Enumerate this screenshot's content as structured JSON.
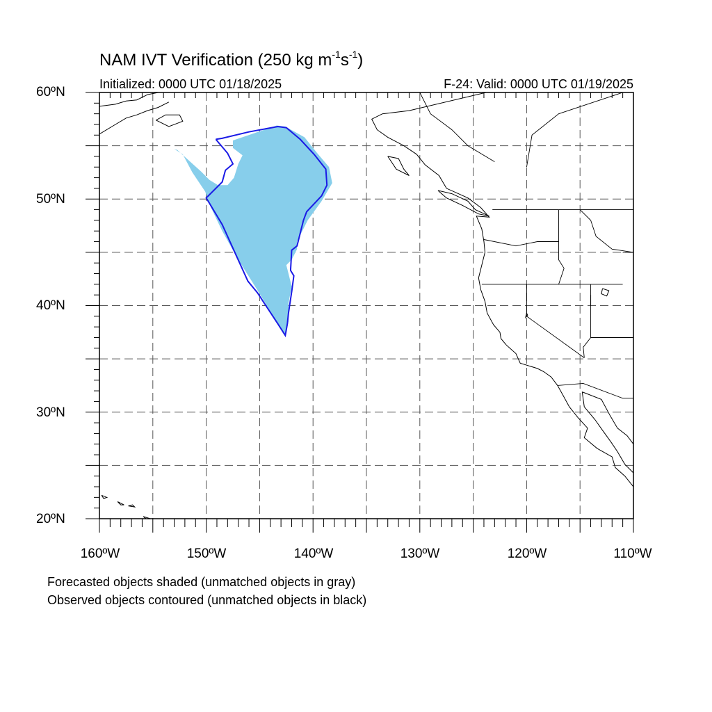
{
  "title": {
    "prefix": "NAM IVT Verification (250 kg m",
    "exp1": "-1",
    "mid": "s",
    "exp2": "-1",
    "suffix": ")"
  },
  "subtitle": {
    "initialized": "Initialized: 0000 UTC 01/18/2025",
    "valid": "F-24: Valid: 0000 UTC 01/19/2025"
  },
  "map": {
    "lon_range": [
      -160,
      -110
    ],
    "lat_range": [
      20,
      60
    ],
    "grid_lons": [
      -155,
      -150,
      -145,
      -140,
      -135,
      -130,
      -125,
      -120,
      -115
    ],
    "grid_lats": [
      25,
      30,
      35,
      40,
      45,
      50,
      55
    ],
    "lat_labels": [
      "60ºN",
      "50ºN",
      "40ºN",
      "30ºN",
      "20ºN"
    ],
    "lon_labels": [
      "160ºW",
      "150ºW",
      "140ºW",
      "130ºW",
      "120ºW",
      "110ºW"
    ],
    "colors": {
      "forecast_fill": "#87ceeb",
      "observed_contour": "#1a1ae6",
      "coastline": "#000000",
      "gridline": "#555555"
    }
  },
  "forecast_object": [
    [
      -152.7,
      54.6
    ],
    [
      -151.5,
      53.5
    ],
    [
      -150.5,
      52.6
    ],
    [
      -149.7,
      51.8
    ],
    [
      -148.9,
      51.3
    ],
    [
      -148.0,
      51.3
    ],
    [
      -147.4,
      52.0
    ],
    [
      -147.0,
      53.3
    ],
    [
      -146.6,
      54.1
    ],
    [
      -147.5,
      54.8
    ],
    [
      -147.5,
      55.5
    ],
    [
      -143.4,
      56.9
    ],
    [
      -142.6,
      56.8
    ],
    [
      -140.8,
      55.8
    ],
    [
      -139.6,
      54.3
    ],
    [
      -138.5,
      53.0
    ],
    [
      -138.2,
      51.5
    ],
    [
      -139.2,
      49.8
    ],
    [
      -140.5,
      48.0
    ],
    [
      -141.0,
      47.0
    ],
    [
      -141.5,
      46.0
    ],
    [
      -141.5,
      45.3
    ],
    [
      -142.0,
      44.3
    ],
    [
      -142.5,
      43.8
    ],
    [
      -142.3,
      43.0
    ],
    [
      -142.0,
      41.8
    ],
    [
      -142.3,
      40.2
    ],
    [
      -142.3,
      38.5
    ],
    [
      -142.6,
      37.1
    ],
    [
      -143.6,
      38.8
    ],
    [
      -145.3,
      41.6
    ],
    [
      -147.0,
      44.3
    ],
    [
      -148.5,
      47.0
    ],
    [
      -149.6,
      49.3
    ],
    [
      -150.1,
      50.7
    ],
    [
      -151.3,
      52.5
    ],
    [
      -152.2,
      54.2
    ],
    [
      -153.0,
      54.7
    ]
  ],
  "observed_object": [
    [
      -149.1,
      55.6
    ],
    [
      -148.5,
      55.7
    ],
    [
      -146.0,
      56.3
    ],
    [
      -143.3,
      56.8
    ],
    [
      -142.5,
      56.7
    ],
    [
      -141.2,
      55.6
    ],
    [
      -139.9,
      54.2
    ],
    [
      -138.8,
      52.8
    ],
    [
      -138.7,
      51.3
    ],
    [
      -139.2,
      50.3
    ],
    [
      -140.6,
      48.8
    ],
    [
      -140.9,
      48.0
    ],
    [
      -141.2,
      46.8
    ],
    [
      -141.5,
      45.6
    ],
    [
      -142.0,
      45.2
    ],
    [
      -142.1,
      43.3
    ],
    [
      -141.8,
      42.8
    ],
    [
      -142.0,
      41.3
    ],
    [
      -142.3,
      39.3
    ],
    [
      -142.4,
      38.3
    ],
    [
      -142.6,
      37.2
    ],
    [
      -143.3,
      38.3
    ],
    [
      -145.2,
      41.2
    ],
    [
      -146.1,
      42.3
    ],
    [
      -147.6,
      45.6
    ],
    [
      -148.5,
      47.6
    ],
    [
      -150.0,
      50.1
    ],
    [
      -148.5,
      51.6
    ],
    [
      -148.2,
      52.7
    ],
    [
      -147.5,
      53.3
    ],
    [
      -148.0,
      54.3
    ],
    [
      -149.1,
      55.6
    ]
  ],
  "captions": {
    "forecast": "Forecasted objects shaded (unmatched objects in gray)",
    "observed": "Observed objects contoured (unmatched objects in black)"
  }
}
